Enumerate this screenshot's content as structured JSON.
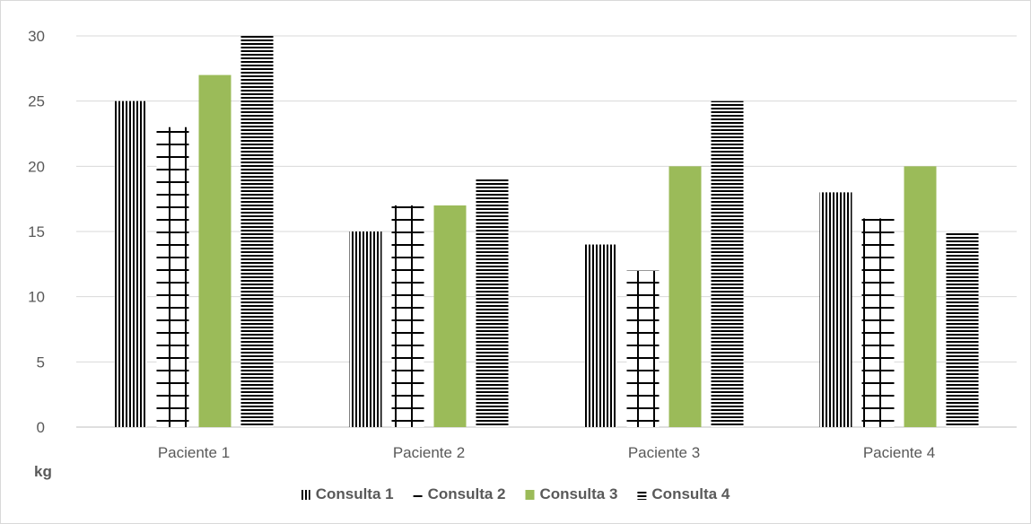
{
  "chart_data": {
    "type": "bar",
    "categories": [
      "Paciente 1",
      "Paciente 2",
      "Paciente 3",
      "Paciente 4"
    ],
    "series": [
      {
        "name": "Consulta 1",
        "values": [
          25,
          15,
          14,
          18
        ],
        "pattern": "vertical-lines",
        "color": "#000000"
      },
      {
        "name": "Consulta 2",
        "values": [
          23,
          17,
          12,
          16
        ],
        "pattern": "grid",
        "color": "#000000"
      },
      {
        "name": "Consulta 3",
        "values": [
          27,
          17,
          20,
          20
        ],
        "pattern": "solid",
        "color": "#9bbb59"
      },
      {
        "name": "Consulta 4",
        "values": [
          30,
          19,
          25,
          15
        ],
        "pattern": "horizontal-lines",
        "color": "#000000"
      }
    ],
    "ylabel": "kg",
    "ylim": [
      0,
      30
    ],
    "yticks": [
      0,
      5,
      10,
      15,
      20,
      25,
      30
    ],
    "grid": true,
    "legend_position": "bottom"
  }
}
